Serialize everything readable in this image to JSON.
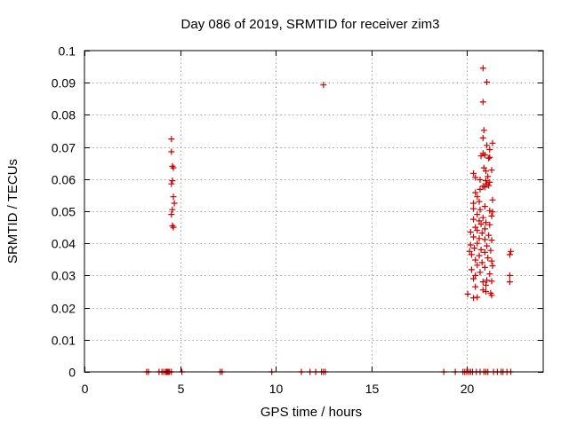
{
  "chart_data": {
    "type": "scatter",
    "title": "Day 086 of 2019, SRMTID for receiver zim3",
    "xlabel": "GPS time / hours",
    "ylabel": "SRMTID / TECUs",
    "xlim": [
      0,
      24
    ],
    "ylim": [
      0,
      0.1
    ],
    "xticks": [
      0,
      5,
      10,
      15,
      20
    ],
    "xtick_labels": [
      "0",
      "5",
      "10",
      "15",
      "20"
    ],
    "yticks": [
      0,
      0.01,
      0.02,
      0.03,
      0.04,
      0.05,
      0.06,
      0.07,
      0.08,
      0.09,
      0.1
    ],
    "ytick_labels": [
      "0",
      "0.01",
      "0.02",
      "0.03",
      "0.04",
      "0.05",
      "0.06",
      "0.07",
      "0.08",
      "0.09",
      "0.1"
    ],
    "grid": true,
    "marker": "+",
    "series_color": "#cc0000",
    "series": [
      {
        "name": "SRMTID",
        "points": [
          [
            3.25,
            0
          ],
          [
            3.35,
            0
          ],
          [
            3.9,
            0
          ],
          [
            4.05,
            0
          ],
          [
            4.15,
            0
          ],
          [
            4.25,
            0
          ],
          [
            4.3,
            0
          ],
          [
            4.35,
            0
          ],
          [
            4.4,
            0
          ],
          [
            4.45,
            0
          ],
          [
            4.55,
            0
          ],
          [
            5.1,
            0
          ],
          [
            7.1,
            0
          ],
          [
            7.2,
            0
          ],
          [
            9.8,
            0
          ],
          [
            11.35,
            0
          ],
          [
            11.8,
            0
          ],
          [
            12.1,
            0
          ],
          [
            12.4,
            0
          ],
          [
            12.5,
            0
          ],
          [
            12.6,
            0
          ],
          [
            18.8,
            0
          ],
          [
            19.4,
            0
          ],
          [
            19.8,
            0
          ],
          [
            19.9,
            0
          ],
          [
            20.0,
            0
          ],
          [
            20.1,
            0
          ],
          [
            20.2,
            0
          ],
          [
            20.3,
            0
          ],
          [
            20.5,
            0
          ],
          [
            20.7,
            0
          ],
          [
            20.9,
            0
          ],
          [
            21.0,
            0
          ],
          [
            21.1,
            0
          ],
          [
            21.4,
            0
          ],
          [
            21.6,
            0
          ],
          [
            21.8,
            0
          ],
          [
            21.9,
            0
          ],
          [
            22.1,
            0
          ],
          [
            22.3,
            0
          ],
          [
            4.55,
            0.0725
          ],
          [
            4.55,
            0.0685
          ],
          [
            4.6,
            0.064
          ],
          [
            4.65,
            0.0635
          ],
          [
            4.55,
            0.0585
          ],
          [
            4.6,
            0.0595
          ],
          [
            4.65,
            0.0545
          ],
          [
            4.7,
            0.0525
          ],
          [
            4.6,
            0.0505
          ],
          [
            4.55,
            0.049
          ],
          [
            4.6,
            0.0455
          ],
          [
            4.65,
            0.045
          ],
          [
            12.5,
            0.0893
          ],
          [
            20.85,
            0.0945
          ],
          [
            21.05,
            0.0902
          ],
          [
            20.85,
            0.084
          ],
          [
            20.9,
            0.0752
          ],
          [
            20.85,
            0.0728
          ],
          [
            21.05,
            0.0705
          ],
          [
            21.2,
            0.0692
          ],
          [
            21.35,
            0.0712
          ],
          [
            20.85,
            0.068
          ],
          [
            20.95,
            0.0675
          ],
          [
            20.75,
            0.0672
          ],
          [
            21.15,
            0.0665
          ],
          [
            21.2,
            0.0668
          ],
          [
            20.9,
            0.0635
          ],
          [
            21.0,
            0.0625
          ],
          [
            21.3,
            0.0628
          ],
          [
            20.35,
            0.0618
          ],
          [
            20.45,
            0.0605
          ],
          [
            21.1,
            0.0608
          ],
          [
            20.7,
            0.0598
          ],
          [
            21.0,
            0.0595
          ],
          [
            21.2,
            0.059
          ],
          [
            21.05,
            0.0585
          ],
          [
            21.15,
            0.058
          ],
          [
            20.85,
            0.0578
          ],
          [
            20.95,
            0.0575
          ],
          [
            20.7,
            0.0568
          ],
          [
            20.45,
            0.0558
          ],
          [
            20.55,
            0.0545
          ],
          [
            21.35,
            0.0535
          ],
          [
            20.35,
            0.0525
          ],
          [
            20.65,
            0.053
          ],
          [
            20.95,
            0.0515
          ],
          [
            20.35,
            0.0508
          ],
          [
            20.7,
            0.0505
          ],
          [
            21.2,
            0.0502
          ],
          [
            21.35,
            0.0498
          ],
          [
            21.3,
            0.0485
          ],
          [
            20.55,
            0.049
          ],
          [
            20.85,
            0.048
          ],
          [
            20.35,
            0.0475
          ],
          [
            20.65,
            0.047
          ],
          [
            21.0,
            0.0465
          ],
          [
            20.75,
            0.046
          ],
          [
            21.2,
            0.0458
          ],
          [
            20.45,
            0.045
          ],
          [
            20.95,
            0.0445
          ],
          [
            20.55,
            0.044
          ],
          [
            20.2,
            0.0435
          ],
          [
            20.8,
            0.0432
          ],
          [
            21.15,
            0.0425
          ],
          [
            20.35,
            0.042
          ],
          [
            20.65,
            0.0415
          ],
          [
            20.95,
            0.0412
          ],
          [
            21.3,
            0.041
          ],
          [
            20.55,
            0.04
          ],
          [
            20.2,
            0.0395
          ],
          [
            21.05,
            0.0392
          ],
          [
            20.4,
            0.0385
          ],
          [
            20.75,
            0.038
          ],
          [
            21.25,
            0.0378
          ],
          [
            20.15,
            0.0375
          ],
          [
            20.95,
            0.0372
          ],
          [
            20.25,
            0.0365
          ],
          [
            20.65,
            0.0362
          ],
          [
            21.1,
            0.0355
          ],
          [
            20.45,
            0.0348
          ],
          [
            21.3,
            0.0345
          ],
          [
            20.8,
            0.034
          ],
          [
            20.55,
            0.0332
          ],
          [
            21.35,
            0.033
          ],
          [
            20.95,
            0.0325
          ],
          [
            20.25,
            0.0318
          ],
          [
            20.7,
            0.031
          ],
          [
            21.2,
            0.0305
          ],
          [
            20.45,
            0.03
          ],
          [
            20.35,
            0.029
          ],
          [
            21.05,
            0.0285
          ],
          [
            20.85,
            0.028
          ],
          [
            21.3,
            0.0282
          ],
          [
            21.0,
            0.027
          ],
          [
            20.45,
            0.0265
          ],
          [
            20.85,
            0.0255
          ],
          [
            21.0,
            0.025
          ],
          [
            21.25,
            0.0245
          ],
          [
            20.05,
            0.0242
          ],
          [
            21.3,
            0.0238
          ],
          [
            20.55,
            0.0232
          ],
          [
            20.35,
            0.023
          ],
          [
            22.3,
            0.0375
          ],
          [
            22.25,
            0.0365
          ],
          [
            22.25,
            0.03
          ],
          [
            22.25,
            0.028
          ]
        ]
      }
    ]
  }
}
